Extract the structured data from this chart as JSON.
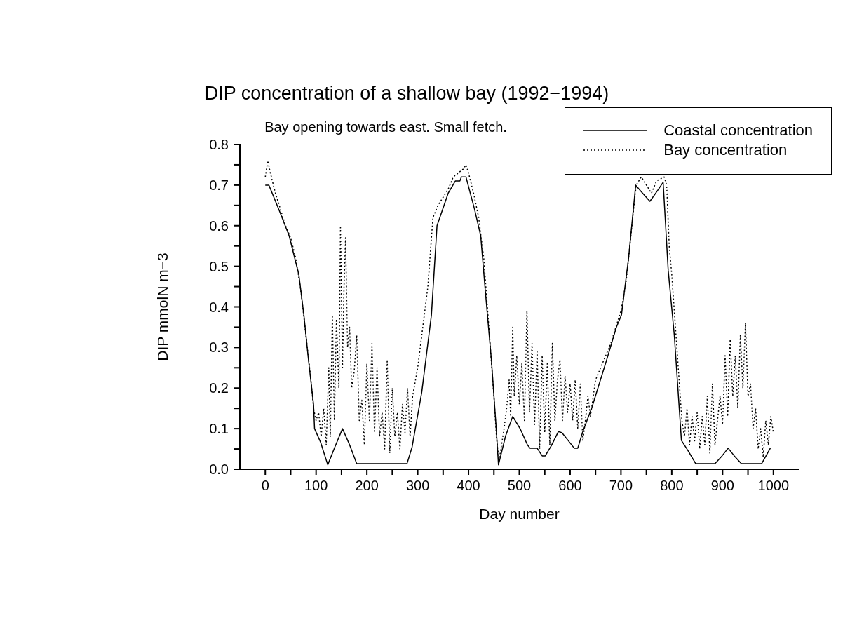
{
  "chart_data": {
    "type": "line",
    "title": "DIP concentration of a shallow bay (1992−1994)",
    "subtitle": "Bay opening towards east. Small fetch.",
    "xlabel": "Day number",
    "ylabel": "DIP mmolN m−3",
    "xlim": [
      -50,
      1050
    ],
    "ylim": [
      0,
      0.8
    ],
    "xticks": [
      0,
      {
        "value": 50,
        "label": null
      },
      100,
      {
        "value": 150,
        "label": null
      },
      200,
      {
        "value": 250,
        "label": null
      },
      300,
      {
        "value": 350,
        "label": null
      },
      400,
      {
        "value": 450,
        "label": null
      },
      500,
      {
        "value": 550,
        "label": null
      },
      600,
      {
        "value": 650,
        "label": null
      },
      700,
      {
        "value": 750,
        "label": null
      },
      800,
      {
        "value": 850,
        "label": null
      },
      900,
      {
        "value": 950,
        "label": null
      },
      1000
    ],
    "yticks": [
      {
        "value": 0,
        "label": "0.0"
      },
      {
        "value": 0.05,
        "label": null
      },
      {
        "value": 0.1,
        "label": "0.1"
      },
      {
        "value": 0.15,
        "label": null
      },
      {
        "value": 0.2,
        "label": "0.2"
      },
      {
        "value": 0.25,
        "label": null
      },
      {
        "value": 0.3,
        "label": "0.3"
      },
      {
        "value": 0.35,
        "label": null
      },
      {
        "value": 0.4,
        "label": "0.4"
      },
      {
        "value": 0.45,
        "label": null
      },
      {
        "value": 0.5,
        "label": "0.5"
      },
      {
        "value": 0.55,
        "label": null
      },
      {
        "value": 0.6,
        "label": "0.6"
      },
      {
        "value": 0.65,
        "label": null
      },
      {
        "value": 0.7,
        "label": "0.7"
      },
      {
        "value": 0.75,
        "label": null
      },
      {
        "value": 0.8,
        "label": "0.8"
      }
    ],
    "grid": false,
    "legend": "top right",
    "marker": "none",
    "series": [
      {
        "name": "Coastal concentration",
        "color": "#000000",
        "line_style": "solid",
        "x": [
          0,
          7,
          12,
          28,
          47,
          59,
          66,
          76,
          85,
          95,
          97,
          109,
          123,
          137,
          152,
          166,
          180,
          279,
          289,
          308,
          327,
          338,
          360,
          374,
          383,
          386,
          395,
          412,
          424,
          433,
          445,
          454,
          459,
          473,
          487,
          502,
          516,
          521,
          535,
          545,
          551,
          563,
          577,
          584,
          596,
          608,
          615,
          625,
          643,
          672,
          691,
          701,
          715,
          729,
          739,
          757,
          774,
          783,
          793,
          805,
          819,
          833,
          847,
          885,
          899,
          911,
          923,
          937,
          977,
          994
        ],
        "values": [
          0.7,
          0.7,
          0.685,
          0.636,
          0.575,
          0.515,
          0.48,
          0.38,
          0.27,
          0.16,
          0.1,
          0.066,
          0.011,
          0.055,
          0.1,
          0.06,
          0.014,
          0.014,
          0.055,
          0.19,
          0.38,
          0.6,
          0.68,
          0.71,
          0.71,
          0.72,
          0.72,
          0.64,
          0.575,
          0.44,
          0.27,
          0.11,
          0.011,
          0.082,
          0.13,
          0.099,
          0.06,
          0.052,
          0.052,
          0.033,
          0.033,
          0.058,
          0.093,
          0.09,
          0.071,
          0.052,
          0.052,
          0.093,
          0.153,
          0.27,
          0.35,
          0.38,
          0.52,
          0.7,
          0.685,
          0.66,
          0.69,
          0.707,
          0.49,
          0.33,
          0.071,
          0.044,
          0.014,
          0.014,
          0.033,
          0.052,
          0.033,
          0.014,
          0.014,
          0.052
        ]
      },
      {
        "name": "Bay concentration",
        "color": "#000000",
        "line_style": "dotted",
        "x": [
          0,
          5,
          10,
          20,
          30,
          40,
          50,
          60,
          70,
          80,
          90,
          95,
          100,
          105,
          110,
          115,
          120,
          125,
          128,
          132,
          136,
          140,
          145,
          148,
          152,
          155,
          158,
          162,
          166,
          170,
          175,
          180,
          185,
          190,
          195,
          200,
          205,
          210,
          215,
          220,
          225,
          230,
          235,
          240,
          245,
          250,
          255,
          260,
          265,
          270,
          275,
          280,
          285,
          290,
          300,
          310,
          320,
          330,
          340,
          350,
          360,
          370,
          380,
          390,
          395,
          400,
          410,
          420,
          430,
          440,
          450,
          455,
          460,
          465,
          470,
          475,
          480,
          483,
          487,
          490,
          495,
          500,
          505,
          510,
          515,
          520,
          525,
          530,
          535,
          540,
          545,
          550,
          555,
          560,
          565,
          570,
          575,
          580,
          585,
          590,
          595,
          600,
          605,
          610,
          615,
          620,
          625,
          630,
          635,
          640,
          650,
          660,
          670,
          680,
          690,
          700,
          710,
          720,
          730,
          740,
          760,
          770,
          785,
          790,
          795,
          800,
          810,
          820,
          825,
          830,
          835,
          840,
          845,
          850,
          855,
          860,
          865,
          870,
          875,
          880,
          885,
          890,
          895,
          900,
          905,
          910,
          915,
          920,
          925,
          930,
          935,
          940,
          945,
          950,
          955,
          960,
          965,
          970,
          975,
          980,
          985,
          990,
          995,
          1000
        ],
        "values": [
          0.72,
          0.76,
          0.73,
          0.68,
          0.64,
          0.6,
          0.57,
          0.52,
          0.44,
          0.33,
          0.22,
          0.15,
          0.12,
          0.14,
          0.08,
          0.15,
          0.06,
          0.25,
          0.08,
          0.38,
          0.12,
          0.37,
          0.2,
          0.6,
          0.25,
          0.45,
          0.57,
          0.3,
          0.35,
          0.2,
          0.24,
          0.33,
          0.12,
          0.17,
          0.06,
          0.26,
          0.12,
          0.31,
          0.09,
          0.25,
          0.08,
          0.14,
          0.05,
          0.27,
          0.04,
          0.2,
          0.08,
          0.14,
          0.05,
          0.16,
          0.09,
          0.2,
          0.08,
          0.18,
          0.25,
          0.35,
          0.45,
          0.62,
          0.65,
          0.67,
          0.69,
          0.72,
          0.73,
          0.74,
          0.75,
          0.73,
          0.68,
          0.62,
          0.52,
          0.35,
          0.18,
          0.08,
          0.02,
          0.06,
          0.1,
          0.15,
          0.22,
          0.13,
          0.35,
          0.18,
          0.28,
          0.16,
          0.26,
          0.12,
          0.39,
          0.14,
          0.31,
          0.11,
          0.29,
          0.05,
          0.28,
          0.09,
          0.26,
          0.06,
          0.31,
          0.12,
          0.22,
          0.27,
          0.12,
          0.23,
          0.14,
          0.21,
          0.12,
          0.22,
          0.1,
          0.21,
          0.07,
          0.12,
          0.18,
          0.13,
          0.22,
          0.25,
          0.28,
          0.31,
          0.35,
          0.39,
          0.46,
          0.58,
          0.7,
          0.72,
          0.68,
          0.71,
          0.72,
          0.7,
          0.55,
          0.48,
          0.3,
          0.12,
          0.08,
          0.15,
          0.06,
          0.13,
          0.07,
          0.14,
          0.05,
          0.13,
          0.06,
          0.18,
          0.04,
          0.21,
          0.06,
          0.12,
          0.18,
          0.11,
          0.28,
          0.13,
          0.32,
          0.18,
          0.28,
          0.15,
          0.33,
          0.2,
          0.36,
          0.18,
          0.21,
          0.1,
          0.15,
          0.05,
          0.1,
          0.03,
          0.12,
          0.06,
          0.13,
          0.09
        ]
      }
    ]
  }
}
